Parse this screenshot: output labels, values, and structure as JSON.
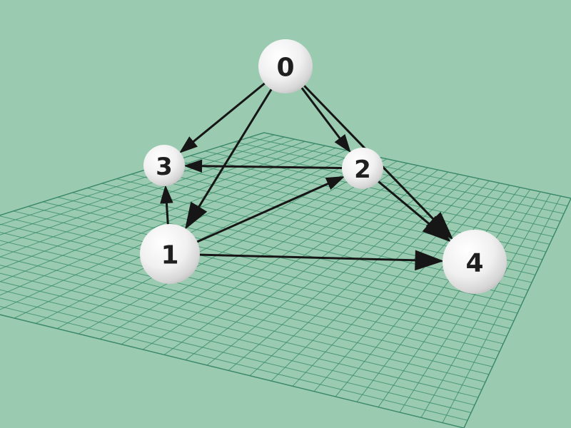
{
  "graph": {
    "background": "#9acbb1",
    "grid_color": "#3f8f6e",
    "node_color": "#f2f2f2",
    "edge_color": "#161616",
    "nodes": [
      {
        "id": "0",
        "label": "0"
      },
      {
        "id": "1",
        "label": "1"
      },
      {
        "id": "2",
        "label": "2"
      },
      {
        "id": "3",
        "label": "3"
      },
      {
        "id": "4",
        "label": "4"
      }
    ],
    "edges": [
      {
        "from": "0",
        "to": "3"
      },
      {
        "from": "0",
        "to": "1"
      },
      {
        "from": "0",
        "to": "2"
      },
      {
        "from": "0",
        "to": "4"
      },
      {
        "from": "2",
        "to": "3"
      },
      {
        "from": "2",
        "to": "4"
      },
      {
        "from": "1",
        "to": "2"
      },
      {
        "from": "1",
        "to": "3"
      },
      {
        "from": "1",
        "to": "4"
      }
    ]
  }
}
